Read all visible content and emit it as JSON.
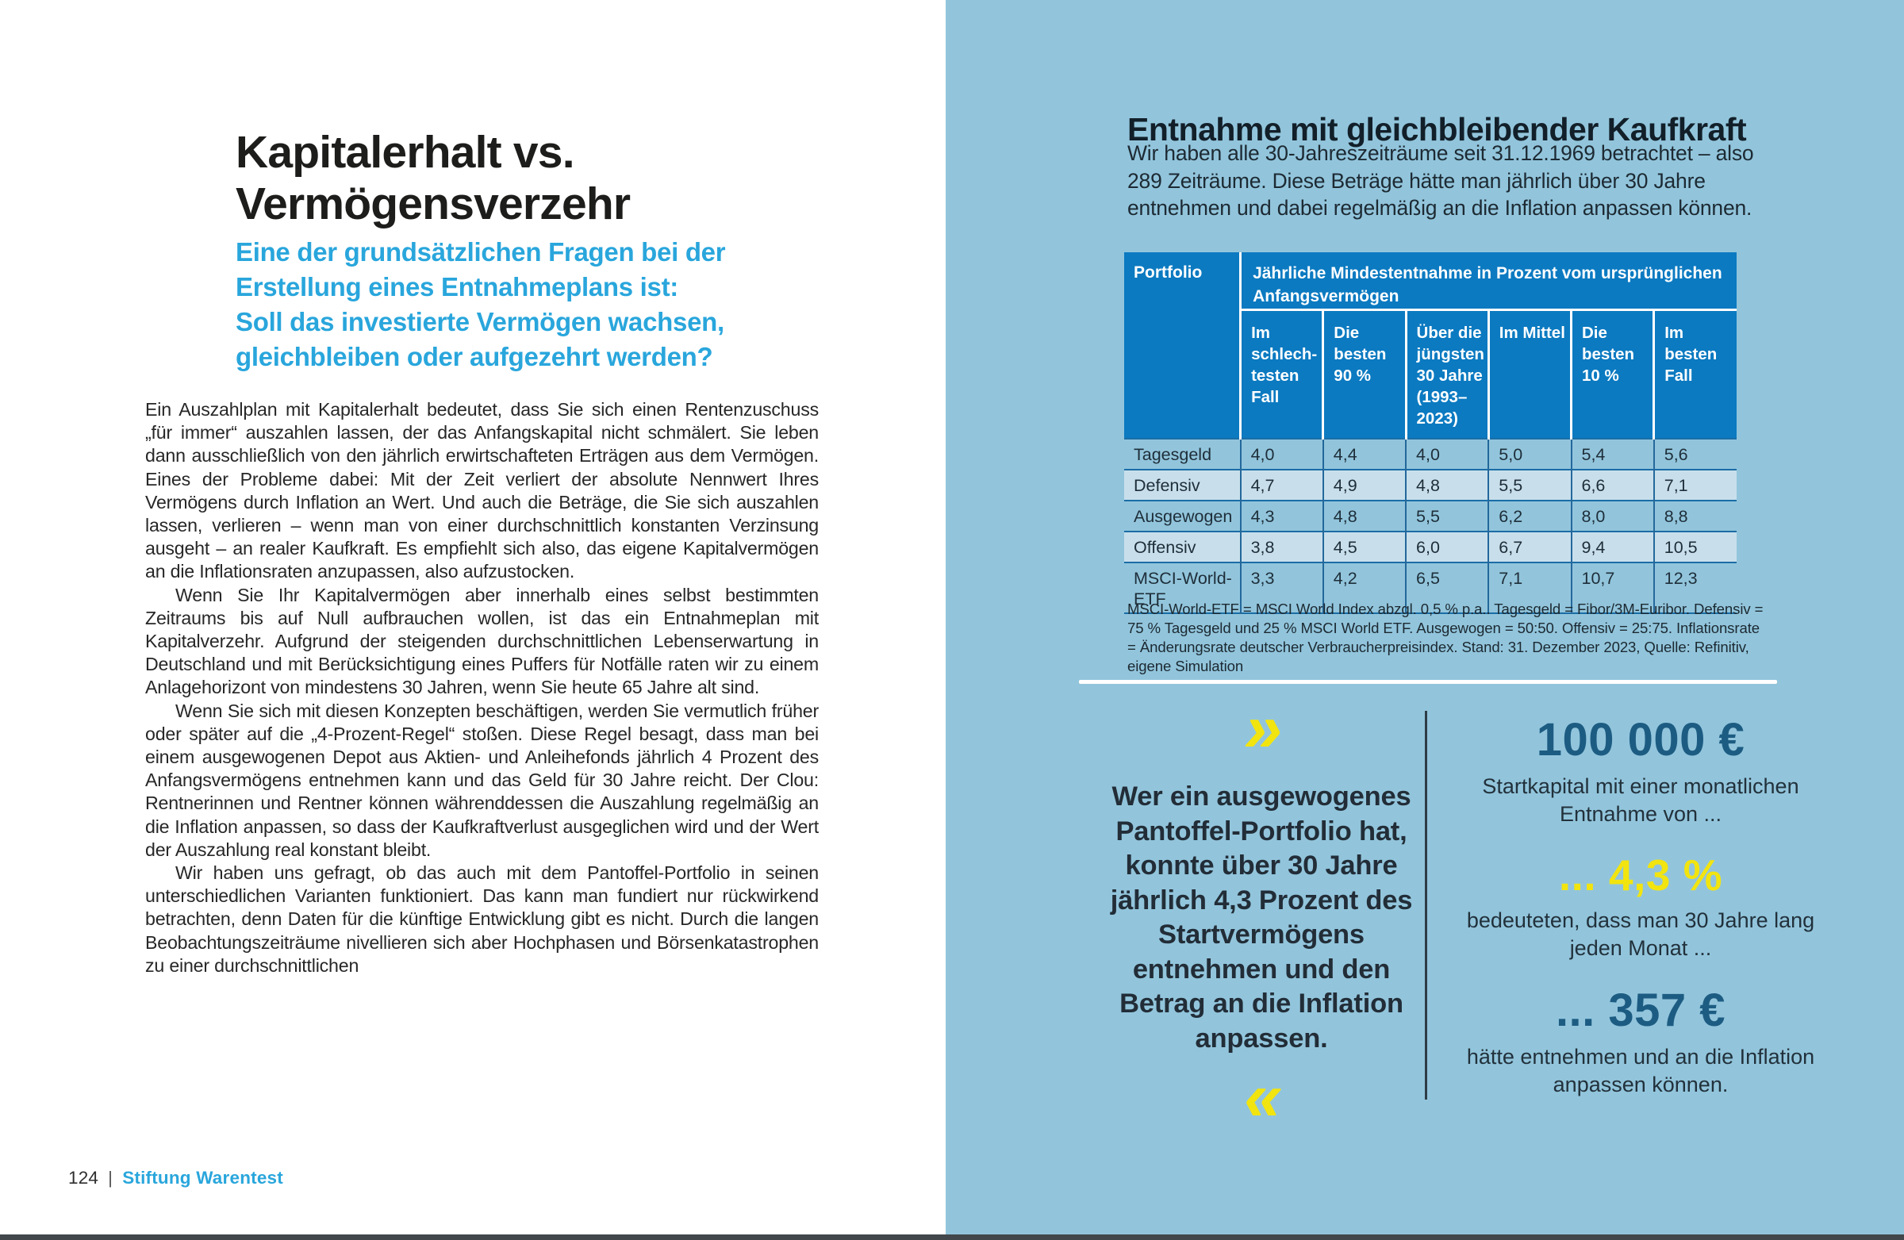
{
  "colors": {
    "panel_blue": "#92c5dc",
    "table_header_blue": "#0b7ac1",
    "table_row_light": "#c8dfeb",
    "table_line_blue": "#1b6da6",
    "accent_cyan": "#29a6dc",
    "accent_navy": "#1d5c82",
    "accent_yellow": "#f2e40f"
  },
  "left": {
    "title": "Kapitalerhalt vs. Vermögensverzehr",
    "subtitle_lines": [
      "Eine der grundsätzlichen Fragen bei der",
      "Erstellung eines Entnahmeplans ist:",
      "Soll das investierte Vermögen wachsen,",
      "gleichbleiben oder aufgezehrt werden?"
    ],
    "paragraphs": [
      "Ein Auszahlplan mit Kapitalerhalt bedeutet, dass Sie sich einen Rentenzuschuss „für immer“ auszahlen lassen, der das Anfangskapital nicht schmälert. Sie leben dann ausschließlich von den jährlich erwirtschafteten Erträgen aus dem Vermögen. Eines der Probleme dabei: Mit der Zeit verliert der absolute Nennwert Ihres Vermögens durch Inflation an Wert. Und auch die Beträge, die Sie sich auszahlen lassen, verlieren – wenn man von einer durchschnittlich konstanten Verzinsung ausgeht – an realer Kaufkraft. Es empfiehlt sich also, das eigene Kapitalvermögen an die Inflationsraten anzupassen, also aufzustocken.",
      "Wenn Sie Ihr Kapitalvermögen aber innerhalb eines selbst bestimmten Zeitraums bis auf Null aufbrauchen wollen, ist das ein Entnahmeplan mit Kapitalverzehr. Aufgrund der steigenden durchschnittlichen Lebenserwartung in Deutschland und mit Berücksichtigung eines Puffers für Notfälle raten wir zu einem Anlagehorizont von mindestens 30 Jahren, wenn Sie heute 65 Jahre alt sind.",
      "Wenn Sie sich mit diesen Konzepten beschäftigen, werden Sie vermutlich früher oder später auf die „4-Prozent-Regel“ stoßen. Diese Regel besagt, dass man bei einem ausgewogenen Depot aus Aktien- und Anleihefonds jährlich 4 Prozent des Anfangsvermögens entnehmen kann und das Geld für 30 Jahre reicht. Der Clou: Rentnerinnen und Rentner können währenddessen die Auszahlung regelmäßig an die Inflation anpassen, so dass der Kaufkraftverlust ausgeglichen wird und der Wert der Auszahlung real konstant bleibt.",
      "Wir haben uns gefragt, ob das auch mit dem Pantoffel-Portfolio in seinen unterschiedlichen Varianten funktioniert. Das kann man fundiert nur rückwirkend betrachten, denn Daten für die künftige Entwicklung gibt es nicht. Durch die langen Beobachtungszeiträume nivellieren sich aber Hochphasen und Börsenkatastrophen zu einer durchschnittlichen"
    ],
    "footer": {
      "page_number": "124",
      "separator": "|",
      "brand": "Stiftung Warentest"
    }
  },
  "right": {
    "heading": "Entnahme mit gleichbleibender Kaufkraft",
    "intro": "Wir haben alle 30-Jahreszeiträume seit 31.12.1969 betrachtet – also 289 Zeiträume. Diese Beträge hätte man jährlich über 30 Jahre entnehmen und dabei regelmäßig an die Inflation anpassen können.",
    "table": {
      "corner_header": "Portfolio",
      "span_header": "Jährliche Mindestentnahme in Prozent vom ursprünglichen Anfangsvermögen",
      "columns": [
        "Im schlech­testen Fall",
        "Die besten 90 %",
        "Über die jüngsten 30 Jahre (1993–2023)",
        "Im Mittel",
        "Die besten 10 %",
        "Im besten Fall"
      ],
      "rows": [
        {
          "label": "Tagesgeld",
          "values": [
            "4,0",
            "4,4",
            "4,0",
            "5,0",
            "5,4",
            "5,6"
          ]
        },
        {
          "label": "Defensiv",
          "values": [
            "4,7",
            "4,9",
            "4,8",
            "5,5",
            "6,6",
            "7,1"
          ]
        },
        {
          "label": "Ausgewogen",
          "values": [
            "4,3",
            "4,8",
            "5,5",
            "6,2",
            "8,0",
            "8,8"
          ]
        },
        {
          "label": "Offensiv",
          "values": [
            "3,8",
            "4,5",
            "6,0",
            "6,7",
            "9,4",
            "10,5"
          ]
        },
        {
          "label": "MSCI-World-ETF",
          "values": [
            "3,3",
            "4,2",
            "6,5",
            "7,1",
            "10,7",
            "12,3"
          ]
        }
      ]
    },
    "footnote": "MSCI-World-ETF = MSCI World Index abzgl. 0,5 % p.a.. Tagesgeld = Fibor/3M-Euribor. Defensiv = 75 % Tagesgeld und 25 % MSCI World ETF. Ausgewogen = 50:50. Offensiv = 25:75. Inflationsrate = Änderungsrate deutscher Verbraucherpreisindex. Stand: 31. Dezember 2023, Quelle: Refinitiv, eigene Simulation",
    "quote": {
      "open_mark": "»",
      "text": "Wer ein ausgewogenes Pantoffel-Portfolio hat, konnte über 30 Jahre jährlich 4,3 Prozent des Startvermögens entnehmen und den Betrag an die Inflation anpassen.",
      "close_mark": "«"
    },
    "stats": [
      {
        "value": "100 000 €",
        "caption": "Startkapital mit einer monatlichen Entnahme von ..."
      },
      {
        "value": "... 4,3 %",
        "caption": "bedeuteten, dass man 30 Jahre lang jeden Monat ..."
      },
      {
        "value": "... 357 €",
        "caption": "hätte entnehmen und an die Inflation anpassen können."
      }
    ]
  }
}
